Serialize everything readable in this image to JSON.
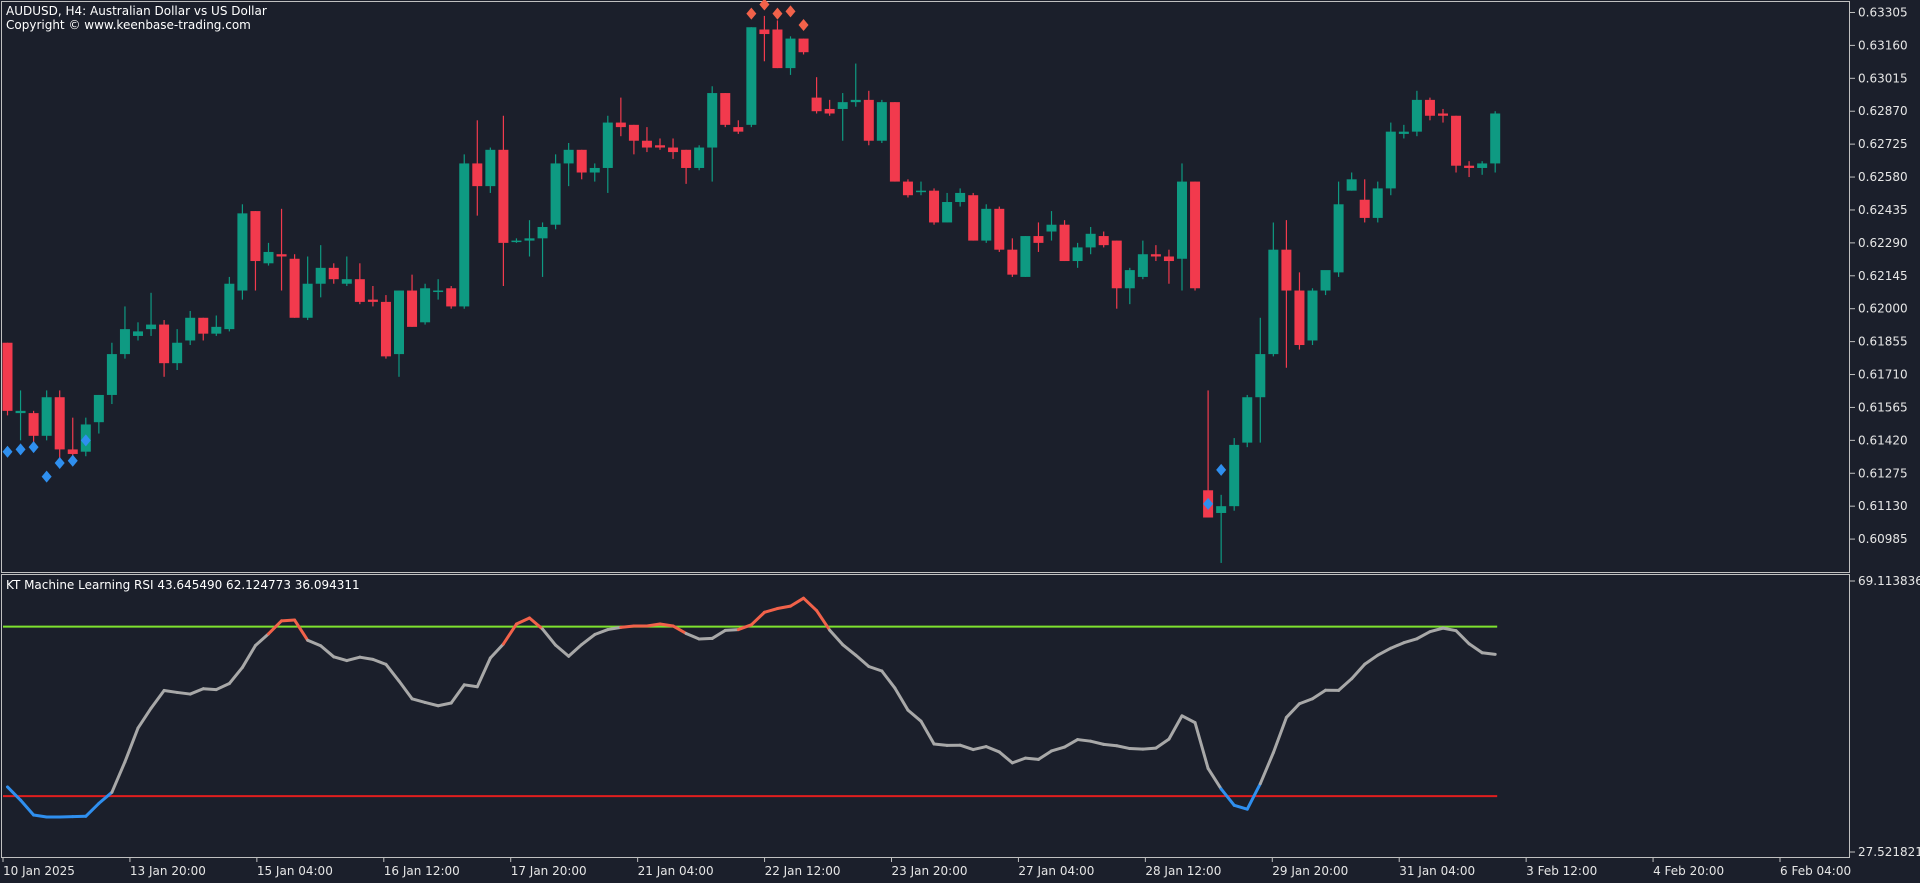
{
  "header": {
    "symbol_line": "AUDUSD, H4:  Australian Dollar vs US Dollar",
    "copyright": "Copyright © www.keenbase-trading.com"
  },
  "indicator": {
    "label": "KT Machine Learning RSI 43.645490 62.124773 36.094311",
    "scale_max_label": "69.113836",
    "scale_min_label": "27.521821"
  },
  "colors": {
    "background": "#1b1f2b",
    "bull": "#0e9a82",
    "bear": "#f23a4d",
    "buy_marker": "#2f8fef",
    "sell_marker": "#f2624a",
    "rsi_line": "#a8a8a8",
    "rsi_oversold_line": "#2f8fef",
    "rsi_overbought_line": "#f2624a",
    "upper_level": "#7ee22f",
    "lower_level": "#e01e1e"
  },
  "chart_data": [
    {
      "type": "candlestick",
      "symbol": "AUDUSD",
      "timeframe": "H4",
      "ylim": [
        0.6084,
        0.6336
      ],
      "y_ticks": [
        "0.63305",
        "0.63160",
        "0.63015",
        "0.62870",
        "0.62725",
        "0.62580",
        "0.62435",
        "0.62290",
        "0.62145",
        "0.62000",
        "0.61855",
        "0.61710",
        "0.61565",
        "0.61420",
        "0.61275",
        "0.61130",
        "0.60985"
      ],
      "x_ticks": [
        "10 Jan 2025",
        "13 Jan 20:00",
        "15 Jan 04:00",
        "16 Jan 12:00",
        "17 Jan 20:00",
        "21 Jan 04:00",
        "22 Jan 12:00",
        "23 Jan 20:00",
        "27 Jan 04:00",
        "28 Jan 12:00",
        "29 Jan 20:00",
        "31 Jan 04:00",
        "3 Feb 12:00",
        "4 Feb 20:00",
        "6 Feb 04:00"
      ],
      "candles": [
        {
          "o": 0.6185,
          "h": 0.6185,
          "c": 0.6155,
          "l": 0.6153
        },
        {
          "o": 0.6154,
          "h": 0.6164,
          "c": 0.6155,
          "l": 0.6142
        },
        {
          "o": 0.6154,
          "h": 0.6155,
          "c": 0.6144,
          "l": 0.6139
        },
        {
          "o": 0.6144,
          "h": 0.6164,
          "c": 0.6161,
          "l": 0.6142
        },
        {
          "o": 0.6161,
          "h": 0.6164,
          "c": 0.6138,
          "l": 0.6132
        },
        {
          "o": 0.6138,
          "h": 0.6152,
          "c": 0.6136,
          "l": 0.6134
        },
        {
          "o": 0.6137,
          "h": 0.6152,
          "c": 0.6149,
          "l": 0.6135
        },
        {
          "o": 0.615,
          "h": 0.6162,
          "c": 0.6162,
          "l": 0.6145
        },
        {
          "o": 0.6162,
          "h": 0.6185,
          "c": 0.618,
          "l": 0.6158
        },
        {
          "o": 0.618,
          "h": 0.6201,
          "c": 0.6191,
          "l": 0.6178
        },
        {
          "o": 0.6188,
          "h": 0.6194,
          "c": 0.619,
          "l": 0.6186
        },
        {
          "o": 0.6191,
          "h": 0.6207,
          "c": 0.6193,
          "l": 0.6188
        },
        {
          "o": 0.6193,
          "h": 0.6195,
          "c": 0.6176,
          "l": 0.617
        },
        {
          "o": 0.6176,
          "h": 0.6191,
          "c": 0.6185,
          "l": 0.6173
        },
        {
          "o": 0.6186,
          "h": 0.6199,
          "c": 0.6196,
          "l": 0.6184
        },
        {
          "o": 0.6196,
          "h": 0.6196,
          "c": 0.6189,
          "l": 0.6186
        },
        {
          "o": 0.6189,
          "h": 0.6197,
          "c": 0.6192,
          "l": 0.6188
        },
        {
          "o": 0.6191,
          "h": 0.6214,
          "c": 0.6211,
          "l": 0.619
        },
        {
          "o": 0.6208,
          "h": 0.6246,
          "c": 0.6242,
          "l": 0.6204
        },
        {
          "o": 0.6243,
          "h": 0.6243,
          "c": 0.6221,
          "l": 0.6208
        },
        {
          "o": 0.622,
          "h": 0.6229,
          "c": 0.6225,
          "l": 0.6219
        },
        {
          "o": 0.6224,
          "h": 0.6244,
          "c": 0.6223,
          "l": 0.6208
        },
        {
          "o": 0.6222,
          "h": 0.6224,
          "c": 0.6196,
          "l": 0.6196
        },
        {
          "o": 0.6196,
          "h": 0.6223,
          "c": 0.6211,
          "l": 0.6195
        },
        {
          "o": 0.6211,
          "h": 0.6228,
          "c": 0.6218,
          "l": 0.6205
        },
        {
          "o": 0.6218,
          "h": 0.622,
          "c": 0.6213,
          "l": 0.6211
        },
        {
          "o": 0.6211,
          "h": 0.6223,
          "c": 0.6213,
          "l": 0.621
        },
        {
          "o": 0.6213,
          "h": 0.622,
          "c": 0.6203,
          "l": 0.6202
        },
        {
          "o": 0.6204,
          "h": 0.621,
          "c": 0.6203,
          "l": 0.6201
        },
        {
          "o": 0.6203,
          "h": 0.6206,
          "c": 0.6179,
          "l": 0.6178
        },
        {
          "o": 0.618,
          "h": 0.6208,
          "c": 0.6208,
          "l": 0.617
        },
        {
          "o": 0.6208,
          "h": 0.6215,
          "c": 0.6192,
          "l": 0.6192
        },
        {
          "o": 0.6194,
          "h": 0.6211,
          "c": 0.6209,
          "l": 0.6193
        },
        {
          "o": 0.6208,
          "h": 0.6213,
          "c": 0.6208,
          "l": 0.6204
        },
        {
          "o": 0.6209,
          "h": 0.621,
          "c": 0.6201,
          "l": 0.62
        },
        {
          "o": 0.6201,
          "h": 0.6268,
          "c": 0.6264,
          "l": 0.62
        },
        {
          "o": 0.6264,
          "h": 0.6283,
          "c": 0.6254,
          "l": 0.6241
        },
        {
          "o": 0.6254,
          "h": 0.6271,
          "c": 0.627,
          "l": 0.6251
        },
        {
          "o": 0.627,
          "h": 0.6285,
          "c": 0.6229,
          "l": 0.621
        },
        {
          "o": 0.623,
          "h": 0.6231,
          "c": 0.623,
          "l": 0.6229
        },
        {
          "o": 0.623,
          "h": 0.6239,
          "c": 0.6231,
          "l": 0.6223
        },
        {
          "o": 0.6231,
          "h": 0.6238,
          "c": 0.6236,
          "l": 0.6214
        },
        {
          "o": 0.6237,
          "h": 0.6268,
          "c": 0.6264,
          "l": 0.6235
        },
        {
          "o": 0.6264,
          "h": 0.6273,
          "c": 0.627,
          "l": 0.6254
        },
        {
          "o": 0.627,
          "h": 0.627,
          "c": 0.626,
          "l": 0.6257
        },
        {
          "o": 0.626,
          "h": 0.6264,
          "c": 0.6262,
          "l": 0.6256
        },
        {
          "o": 0.6262,
          "h": 0.6285,
          "c": 0.6282,
          "l": 0.6251
        },
        {
          "o": 0.6282,
          "h": 0.6293,
          "c": 0.628,
          "l": 0.6276
        },
        {
          "o": 0.6281,
          "h": 0.6281,
          "c": 0.6274,
          "l": 0.6268
        },
        {
          "o": 0.6274,
          "h": 0.628,
          "c": 0.6271,
          "l": 0.6269
        },
        {
          "o": 0.6272,
          "h": 0.6275,
          "c": 0.6271,
          "l": 0.627
        },
        {
          "o": 0.6271,
          "h": 0.6275,
          "c": 0.6269,
          "l": 0.6266
        },
        {
          "o": 0.627,
          "h": 0.627,
          "c": 0.6262,
          "l": 0.6255
        },
        {
          "o": 0.6262,
          "h": 0.6272,
          "c": 0.6271,
          "l": 0.6261
        },
        {
          "o": 0.6271,
          "h": 0.6298,
          "c": 0.6295,
          "l": 0.6256
        },
        {
          "o": 0.6295,
          "h": 0.6295,
          "c": 0.6281,
          "l": 0.628
        },
        {
          "o": 0.628,
          "h": 0.6283,
          "c": 0.6278,
          "l": 0.6277
        },
        {
          "o": 0.6281,
          "h": 0.6324,
          "c": 0.6324,
          "l": 0.628
        },
        {
          "o": 0.6323,
          "h": 0.6329,
          "c": 0.6321,
          "l": 0.6309
        },
        {
          "o": 0.6323,
          "h": 0.6327,
          "c": 0.6306,
          "l": 0.6306
        },
        {
          "o": 0.6306,
          "h": 0.632,
          "c": 0.6319,
          "l": 0.6303
        },
        {
          "o": 0.6319,
          "h": 0.6319,
          "c": 0.6313,
          "l": 0.6312
        },
        {
          "o": 0.6293,
          "h": 0.6302,
          "c": 0.6287,
          "l": 0.6286
        },
        {
          "o": 0.6288,
          "h": 0.6292,
          "c": 0.6286,
          "l": 0.6285
        },
        {
          "o": 0.6288,
          "h": 0.6295,
          "c": 0.6291,
          "l": 0.6274
        },
        {
          "o": 0.6291,
          "h": 0.6308,
          "c": 0.6292,
          "l": 0.6289
        },
        {
          "o": 0.6292,
          "h": 0.6296,
          "c": 0.6274,
          "l": 0.6272
        },
        {
          "o": 0.6274,
          "h": 0.6292,
          "c": 0.6291,
          "l": 0.6273
        },
        {
          "o": 0.6291,
          "h": 0.6291,
          "c": 0.6256,
          "l": 0.6256
        },
        {
          "o": 0.6256,
          "h": 0.6257,
          "c": 0.625,
          "l": 0.6249
        },
        {
          "o": 0.6252,
          "h": 0.6256,
          "c": 0.6252,
          "l": 0.625
        },
        {
          "o": 0.6252,
          "h": 0.6253,
          "c": 0.6238,
          "l": 0.6237
        },
        {
          "o": 0.6238,
          "h": 0.6251,
          "c": 0.6247,
          "l": 0.6238
        },
        {
          "o": 0.6247,
          "h": 0.6253,
          "c": 0.6251,
          "l": 0.6245
        },
        {
          "o": 0.625,
          "h": 0.6251,
          "c": 0.623,
          "l": 0.623
        },
        {
          "o": 0.623,
          "h": 0.6246,
          "c": 0.6244,
          "l": 0.6229
        },
        {
          "o": 0.6244,
          "h": 0.6245,
          "c": 0.6226,
          "l": 0.6225
        },
        {
          "o": 0.6226,
          "h": 0.6231,
          "c": 0.6215,
          "l": 0.6214
        },
        {
          "o": 0.6214,
          "h": 0.6232,
          "c": 0.6232,
          "l": 0.6214
        },
        {
          "o": 0.6232,
          "h": 0.6238,
          "c": 0.6229,
          "l": 0.6225
        },
        {
          "o": 0.6234,
          "h": 0.6243,
          "c": 0.6237,
          "l": 0.623
        },
        {
          "o": 0.6237,
          "h": 0.6239,
          "c": 0.6221,
          "l": 0.6221
        },
        {
          "o": 0.6221,
          "h": 0.6229,
          "c": 0.6227,
          "l": 0.6218
        },
        {
          "o": 0.6227,
          "h": 0.6236,
          "c": 0.6233,
          "l": 0.6224
        },
        {
          "o": 0.6232,
          "h": 0.6234,
          "c": 0.6228,
          "l": 0.6227
        },
        {
          "o": 0.623,
          "h": 0.623,
          "c": 0.6209,
          "l": 0.62
        },
        {
          "o": 0.6209,
          "h": 0.6218,
          "c": 0.6217,
          "l": 0.6202
        },
        {
          "o": 0.6214,
          "h": 0.623,
          "c": 0.6224,
          "l": 0.6213
        },
        {
          "o": 0.6224,
          "h": 0.6228,
          "c": 0.6223,
          "l": 0.6221
        },
        {
          "o": 0.6223,
          "h": 0.6226,
          "c": 0.6221,
          "l": 0.6211
        },
        {
          "o": 0.6222,
          "h": 0.6264,
          "c": 0.6256,
          "l": 0.6208
        },
        {
          "o": 0.6256,
          "h": 0.6256,
          "c": 0.6209,
          "l": 0.6208
        },
        {
          "o": 0.612,
          "h": 0.6164,
          "c": 0.6108,
          "l": 0.6108
        },
        {
          "o": 0.611,
          "h": 0.6118,
          "c": 0.6113,
          "l": 0.6088
        },
        {
          "o": 0.6113,
          "h": 0.6143,
          "c": 0.614,
          "l": 0.6111
        },
        {
          "o": 0.6141,
          "h": 0.6162,
          "c": 0.6161,
          "l": 0.6139
        },
        {
          "o": 0.6161,
          "h": 0.6196,
          "c": 0.618,
          "l": 0.6141
        },
        {
          "o": 0.618,
          "h": 0.6238,
          "c": 0.6226,
          "l": 0.6179
        },
        {
          "o": 0.6226,
          "h": 0.6239,
          "c": 0.6208,
          "l": 0.6174
        },
        {
          "o": 0.6208,
          "h": 0.6216,
          "c": 0.6184,
          "l": 0.6182
        },
        {
          "o": 0.6186,
          "h": 0.6209,
          "c": 0.6208,
          "l": 0.6184
        },
        {
          "o": 0.6208,
          "h": 0.6215,
          "c": 0.6217,
          "l": 0.6206
        },
        {
          "o": 0.6216,
          "h": 0.6256,
          "c": 0.6246,
          "l": 0.6214
        },
        {
          "o": 0.6252,
          "h": 0.626,
          "c": 0.6257,
          "l": 0.6252
        },
        {
          "o": 0.6248,
          "h": 0.6257,
          "c": 0.624,
          "l": 0.6238
        },
        {
          "o": 0.624,
          "h": 0.6256,
          "c": 0.6253,
          "l": 0.6238
        },
        {
          "o": 0.6253,
          "h": 0.6282,
          "c": 0.6278,
          "l": 0.625
        },
        {
          "o": 0.6277,
          "h": 0.6281,
          "c": 0.6278,
          "l": 0.6275
        },
        {
          "o": 0.6278,
          "h": 0.6296,
          "c": 0.6292,
          "l": 0.6276
        },
        {
          "o": 0.6292,
          "h": 0.6293,
          "c": 0.6285,
          "l": 0.6283
        },
        {
          "o": 0.6286,
          "h": 0.6288,
          "c": 0.6285,
          "l": 0.6282
        },
        {
          "o": 0.6285,
          "h": 0.6285,
          "c": 0.6263,
          "l": 0.626
        },
        {
          "o": 0.6263,
          "h": 0.6265,
          "c": 0.6262,
          "l": 0.6258
        },
        {
          "o": 0.6262,
          "h": 0.6265,
          "c": 0.6264,
          "l": 0.6259
        },
        {
          "o": 0.6264,
          "h": 0.6287,
          "c": 0.6286,
          "l": 0.626
        }
      ],
      "buy_markers": [
        {
          "index": 0,
          "value": 0.6137
        },
        {
          "index": 1,
          "value": 0.6138
        },
        {
          "index": 2,
          "value": 0.6139
        },
        {
          "index": 3,
          "value": 0.6126
        },
        {
          "index": 4,
          "value": 0.6132
        },
        {
          "index": 5,
          "value": 0.6133
        },
        {
          "index": 6,
          "value": 0.6142
        },
        {
          "index": 92,
          "value": 0.6114
        },
        {
          "index": 93,
          "value": 0.6129
        }
      ],
      "sell_markers": [
        {
          "index": 57,
          "value": 0.633
        },
        {
          "index": 58,
          "value": 0.6334
        },
        {
          "index": 59,
          "value": 0.633
        },
        {
          "index": 60,
          "value": 0.6331
        },
        {
          "index": 61,
          "value": 0.6325
        }
      ]
    },
    {
      "type": "line",
      "title": "KT Machine Learning RSI 43.645490 62.124773 36.094311",
      "ylim": [
        27.521821,
        69.113836
      ],
      "y_ticks": [
        "69.113836",
        "27.521821"
      ],
      "upper_level": 62.12,
      "lower_level": 36.09,
      "series": [
        {
          "values": [
            37.5,
            35.48,
            33.2,
            32.9,
            32.9,
            32.95,
            33.0,
            34.98,
            36.68,
            41.36,
            46.54,
            49.59,
            52.31,
            52.01,
            51.76,
            52.58,
            52.45,
            53.38,
            55.85,
            59.22,
            61.0,
            63.0,
            63.12,
            60.02,
            59.17,
            57.48,
            56.9,
            57.42,
            57.08,
            56.32,
            53.76,
            51.04,
            50.47,
            49.97,
            50.39,
            53.18,
            52.89,
            57.3,
            59.45,
            62.51,
            63.44,
            61.74,
            59.27,
            57.56,
            59.36,
            60.9,
            61.66,
            62.0,
            62.21,
            62.21,
            62.51,
            62.21,
            61.06,
            60.22,
            60.3,
            61.53,
            61.66,
            62.39,
            64.3,
            64.89,
            65.26,
            66.48,
            64.58,
            61.58,
            59.34,
            57.73,
            55.99,
            55.3,
            52.68,
            49.29,
            47.6,
            44.1,
            43.88,
            43.91,
            43.24,
            43.7,
            42.88,
            41.2,
            41.93,
            41.73,
            43.03,
            43.63,
            44.78,
            44.53,
            44.04,
            43.83,
            43.4,
            43.31,
            43.47,
            44.85,
            48.43,
            47.38,
            40.34,
            37.2,
            34.69,
            34.1,
            38.0,
            42.76,
            48.17,
            50.28,
            51.04,
            52.35,
            52.32,
            54.12,
            56.34,
            57.73,
            58.8,
            59.64,
            60.25,
            61.34,
            61.88,
            61.49,
            59.48,
            58.1,
            57.86
          ]
        }
      ]
    }
  ]
}
